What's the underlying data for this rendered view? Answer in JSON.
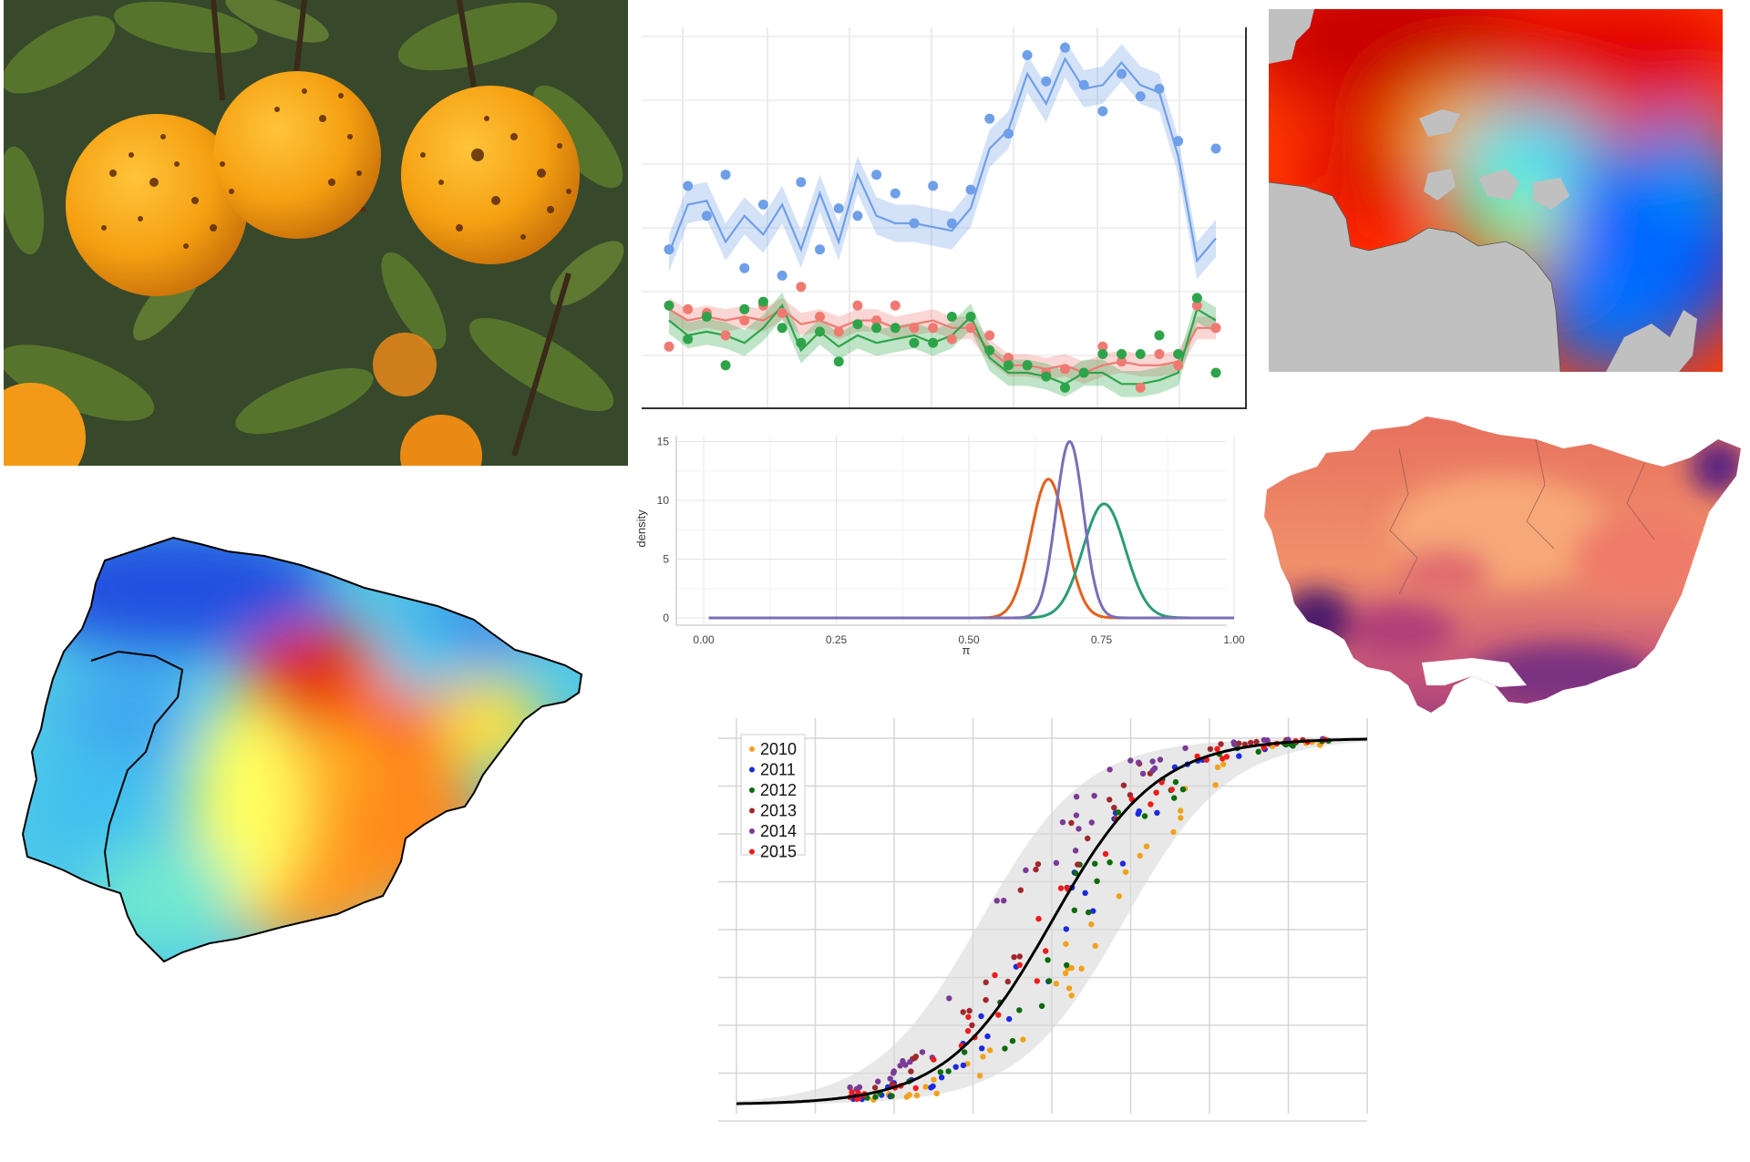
{
  "image_layout": {
    "oranges_photo": {
      "subject": "oranges on tree with dark spots"
    },
    "basque_map": {
      "palette": [
        "#3b0f6f",
        "#8c2981",
        "#de4968",
        "#fe9f6d",
        "#fcc48a"
      ]
    },
    "iberia_map": {
      "palette": [
        "#1f3fd6",
        "#3fb8f0",
        "#ffff40",
        "#ff8a1a",
        "#d01010"
      ]
    },
    "heat_map": {
      "palette": [
        "#0020c0",
        "#00a0ff",
        "#00ffd0",
        "#ffff00",
        "#ff8000",
        "#e00000"
      ]
    }
  },
  "chart_data": [
    {
      "type": "line",
      "id": "time_series",
      "xlabel": "",
      "ylabel": "",
      "grid": true,
      "series": [
        {
          "color": "#6f9fe8",
          "fit": [
            0.42,
            0.55,
            0.56,
            0.45,
            0.52,
            0.47,
            0.55,
            0.43,
            0.58,
            0.45,
            0.63,
            0.52,
            0.5,
            0.5,
            0.49,
            0.48,
            0.54,
            0.7,
            0.75,
            0.9,
            0.82,
            0.94,
            0.86,
            0.87,
            0.93,
            0.87,
            0.85,
            0.68,
            0.4,
            0.46
          ],
          "points": [
            0.43,
            0.6,
            0.52,
            0.63,
            0.38,
            0.55,
            0.36,
            0.61,
            0.43,
            0.54,
            0.52,
            0.63,
            0.58,
            0.5,
            0.6,
            0.5,
            0.59,
            0.78,
            0.74,
            0.95,
            0.88,
            0.97,
            0.87,
            0.8,
            0.9,
            0.84,
            0.86,
            0.72,
            0.3,
            0.7
          ]
        },
        {
          "color": "#f07a72",
          "fit": [
            0.27,
            0.24,
            0.25,
            0.24,
            0.25,
            0.24,
            0.27,
            0.23,
            0.24,
            0.22,
            0.24,
            0.24,
            0.22,
            0.23,
            0.24,
            0.22,
            0.22,
            0.16,
            0.12,
            0.12,
            0.11,
            0.12,
            0.1,
            0.12,
            0.13,
            0.12,
            0.12,
            0.13,
            0.22,
            0.22
          ],
          "points": [
            0.17,
            0.27,
            0.26,
            0.2,
            0.24,
            0.28,
            0.26,
            0.33,
            0.25,
            0.21,
            0.28,
            0.24,
            0.28,
            0.22,
            0.22,
            0.19,
            0.22,
            0.2,
            0.14,
            0.12,
            0.1,
            0.11,
            0.1,
            0.17,
            0.13,
            0.06,
            0.15,
            0.12,
            0.28,
            0.22
          ]
        },
        {
          "color": "#2ea44a",
          "fit": [
            0.24,
            0.2,
            0.21,
            0.2,
            0.18,
            0.22,
            0.28,
            0.16,
            0.21,
            0.17,
            0.2,
            0.18,
            0.19,
            0.2,
            0.18,
            0.2,
            0.25,
            0.14,
            0.1,
            0.1,
            0.09,
            0.07,
            0.1,
            0.1,
            0.07,
            0.07,
            0.08,
            0.1,
            0.27,
            0.24
          ],
          "points": [
            0.28,
            0.19,
            0.25,
            0.12,
            0.27,
            0.29,
            0.22,
            0.18,
            0.21,
            0.13,
            0.23,
            0.22,
            0.22,
            0.18,
            0.18,
            0.25,
            0.25,
            0.16,
            0.12,
            0.12,
            0.09,
            0.06,
            0.1,
            0.15,
            0.15,
            0.15,
            0.2,
            0.15,
            0.3,
            0.1
          ]
        }
      ]
    },
    {
      "type": "line",
      "id": "density",
      "title": "",
      "xlabel": "π",
      "ylabel": "density",
      "xlim": [
        0,
        1
      ],
      "ylim": [
        0,
        15.5
      ],
      "x_ticks": [
        "0.00",
        "0.25",
        "0.50",
        "0.75",
        "1.00"
      ],
      "y_ticks": [
        "0",
        "5",
        "10",
        "15"
      ],
      "series": [
        {
          "color": "#e3601d",
          "dist": "normal",
          "mean": 0.65,
          "sd": 0.033,
          "peak": 11.8
        },
        {
          "color": "#2b9b78",
          "dist": "normal",
          "mean": 0.755,
          "sd": 0.04,
          "peak": 9.7
        },
        {
          "color": "#7a6fb6",
          "dist": "normal",
          "mean": 0.69,
          "sd": 0.026,
          "peak": 15.0
        }
      ]
    },
    {
      "type": "scatter",
      "id": "sigmoid",
      "xlabel": "",
      "ylabel": "",
      "ylim": [
        0,
        1
      ],
      "grid": true,
      "legend_position": "top-left",
      "curve": {
        "type": "logistic",
        "midpoint": 0.5,
        "steepness": 12,
        "band_halfwidth": 0.06,
        "color": "#000000"
      },
      "series": [
        {
          "name": "2010",
          "color": "#f2a21a"
        },
        {
          "name": "2011",
          "color": "#1a2ae0"
        },
        {
          "name": "2012",
          "color": "#0a6b0a"
        },
        {
          "name": "2013",
          "color": "#a0282c"
        },
        {
          "name": "2014",
          "color": "#7a3a96"
        },
        {
          "name": "2015",
          "color": "#f01a1a"
        }
      ]
    }
  ]
}
